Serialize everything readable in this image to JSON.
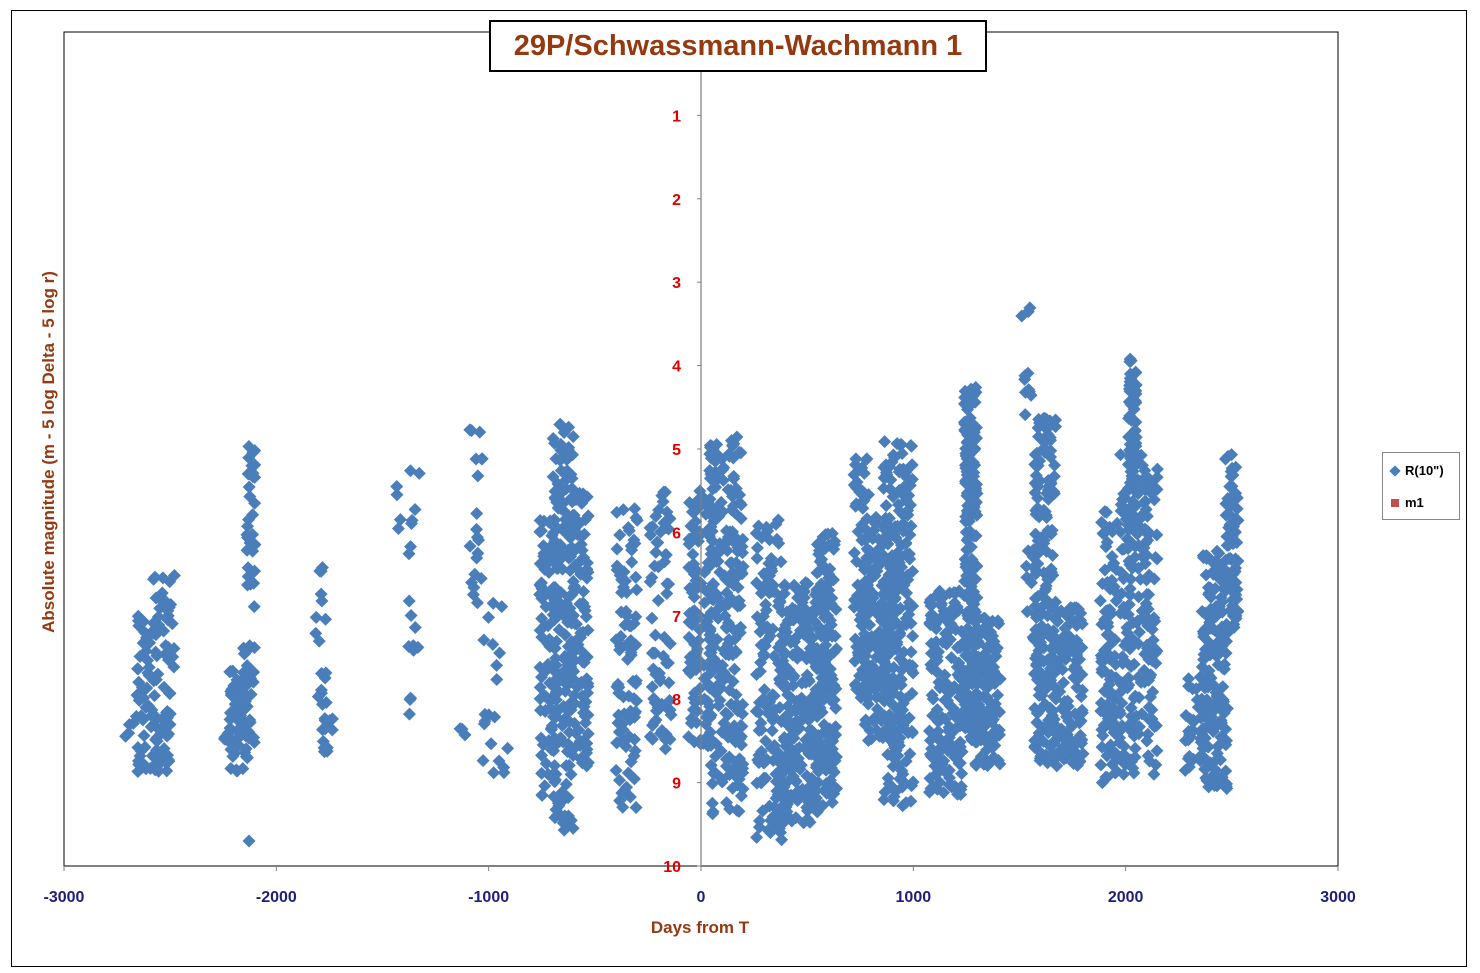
{
  "chart_data": {
    "type": "scatter",
    "title": "29P/Schwassmann-Wachmann 1",
    "xlabel": "Days from T",
    "ylabel": "Absolute magnitude (m - 5 log Delta - 5 log r)",
    "xlim": [
      -3000,
      3000
    ],
    "ylim": [
      10,
      0
    ],
    "y_inverted": true,
    "x_ticks": [
      "-3000",
      "-2000",
      "-1000",
      "0",
      "1000",
      "2000",
      "3000"
    ],
    "y_ticks": [
      "1",
      "2",
      "3",
      "4",
      "5",
      "6",
      "7",
      "8",
      "9",
      "10"
    ],
    "grid": false,
    "legend_position": "right",
    "colors": {
      "title": "#953A10",
      "axis_label": "#953A10",
      "x_tick": "#1F1F7A",
      "y_tick": "#E00000",
      "series1": "#4A7EBB",
      "series2": "#C0504D"
    },
    "series": [
      {
        "name": "R(10\")",
        "marker": "diamond",
        "color": "#4A7EBB",
        "clusters": [
          {
            "x": -2690,
            "xw": 20,
            "ymin": 8.2,
            "ymax": 8.5,
            "n": 4
          },
          {
            "x": -2610,
            "xw": 50,
            "ymin": 7.0,
            "ymax": 8.9,
            "n": 55
          },
          {
            "x": -2530,
            "xw": 50,
            "ymin": 6.5,
            "ymax": 8.95,
            "n": 70
          },
          {
            "x": -2230,
            "xw": 20,
            "ymin": 8.4,
            "ymax": 8.7,
            "n": 6
          },
          {
            "x": -2180,
            "xw": 40,
            "ymin": 7.6,
            "ymax": 8.9,
            "n": 55
          },
          {
            "x": -2120,
            "xw": 20,
            "ymin": 4.95,
            "ymax": 6.9,
            "n": 35
          },
          {
            "x": -2130,
            "xw": 30,
            "ymin": 7.3,
            "ymax": 8.8,
            "n": 30
          },
          {
            "x": -2130,
            "xw": 5,
            "ymin": 9.7,
            "ymax": 9.7,
            "n": 1
          },
          {
            "x": -1790,
            "xw": 25,
            "ymin": 6.4,
            "ymax": 8.0,
            "n": 15
          },
          {
            "x": -1760,
            "xw": 25,
            "ymin": 8.0,
            "ymax": 8.9,
            "n": 15
          },
          {
            "x": -1420,
            "xw": 15,
            "ymin": 5.2,
            "ymax": 6.2,
            "n": 4
          },
          {
            "x": -1350,
            "xw": 30,
            "ymin": 5.1,
            "ymax": 7.5,
            "n": 14
          },
          {
            "x": -1370,
            "xw": 15,
            "ymin": 7.9,
            "ymax": 8.2,
            "n": 3
          },
          {
            "x": -1140,
            "xw": 30,
            "ymin": 8.1,
            "ymax": 8.5,
            "n": 3
          },
          {
            "x": -1060,
            "xw": 30,
            "ymin": 4.7,
            "ymax": 6.9,
            "n": 20
          },
          {
            "x": -970,
            "xw": 60,
            "ymin": 6.8,
            "ymax": 8.9,
            "n": 20
          },
          {
            "x": -720,
            "xw": 40,
            "ymin": 5.6,
            "ymax": 9.2,
            "n": 90
          },
          {
            "x": -650,
            "xw": 50,
            "ymin": 4.7,
            "ymax": 9.6,
            "n": 170
          },
          {
            "x": -570,
            "xw": 40,
            "ymin": 5.5,
            "ymax": 8.8,
            "n": 110
          },
          {
            "x": -350,
            "xw": 50,
            "ymin": 5.7,
            "ymax": 9.3,
            "n": 90
          },
          {
            "x": -190,
            "xw": 50,
            "ymin": 5.5,
            "ymax": 8.6,
            "n": 70
          },
          {
            "x": 0,
            "xw": 60,
            "ymin": 5.5,
            "ymax": 8.6,
            "n": 130
          },
          {
            "x": 120,
            "xw": 80,
            "ymin": 4.85,
            "ymax": 9.4,
            "n": 230
          },
          {
            "x": 320,
            "xw": 60,
            "ymin": 5.8,
            "ymax": 9.7,
            "n": 120
          },
          {
            "x": 460,
            "xw": 90,
            "ymin": 6.6,
            "ymax": 9.5,
            "n": 250
          },
          {
            "x": 590,
            "xw": 50,
            "ymin": 6.0,
            "ymax": 9.3,
            "n": 170
          },
          {
            "x": 760,
            "xw": 40,
            "ymin": 5.1,
            "ymax": 8.0,
            "n": 80
          },
          {
            "x": 840,
            "xw": 70,
            "ymin": 5.8,
            "ymax": 8.5,
            "n": 180
          },
          {
            "x": 930,
            "xw": 70,
            "ymin": 4.9,
            "ymax": 9.3,
            "n": 210
          },
          {
            "x": 1150,
            "xw": 80,
            "ymin": 6.7,
            "ymax": 9.15,
            "n": 160
          },
          {
            "x": 1270,
            "xw": 30,
            "ymin": 4.25,
            "ymax": 8.5,
            "n": 220
          },
          {
            "x": 1350,
            "xw": 60,
            "ymin": 7.0,
            "ymax": 8.8,
            "n": 140
          },
          {
            "x": 1530,
            "xw": 20,
            "ymin": 3.3,
            "ymax": 3.45,
            "n": 3
          },
          {
            "x": 1540,
            "xw": 20,
            "ymin": 4.0,
            "ymax": 4.6,
            "n": 8
          },
          {
            "x": 1560,
            "xw": 30,
            "ymin": 6.0,
            "ymax": 7.3,
            "n": 15
          },
          {
            "x": 1620,
            "xw": 50,
            "ymin": 4.6,
            "ymax": 8.8,
            "n": 180
          },
          {
            "x": 1730,
            "xw": 70,
            "ymin": 6.9,
            "ymax": 8.8,
            "n": 120
          },
          {
            "x": 1920,
            "xw": 40,
            "ymin": 5.7,
            "ymax": 9.0,
            "n": 90
          },
          {
            "x": 2030,
            "xw": 20,
            "ymin": 3.9,
            "ymax": 6.0,
            "n": 70
          },
          {
            "x": 2060,
            "xw": 90,
            "ymin": 5.0,
            "ymax": 8.9,
            "n": 200
          },
          {
            "x": 2330,
            "xw": 50,
            "ymin": 7.7,
            "ymax": 8.9,
            "n": 40
          },
          {
            "x": 2420,
            "xw": 60,
            "ymin": 6.2,
            "ymax": 9.1,
            "n": 150
          },
          {
            "x": 2500,
            "xw": 30,
            "ymin": 5.0,
            "ymax": 7.3,
            "n": 70
          }
        ]
      },
      {
        "name": "m1",
        "marker": "square",
        "color": "#C0504D",
        "clusters": []
      }
    ]
  }
}
